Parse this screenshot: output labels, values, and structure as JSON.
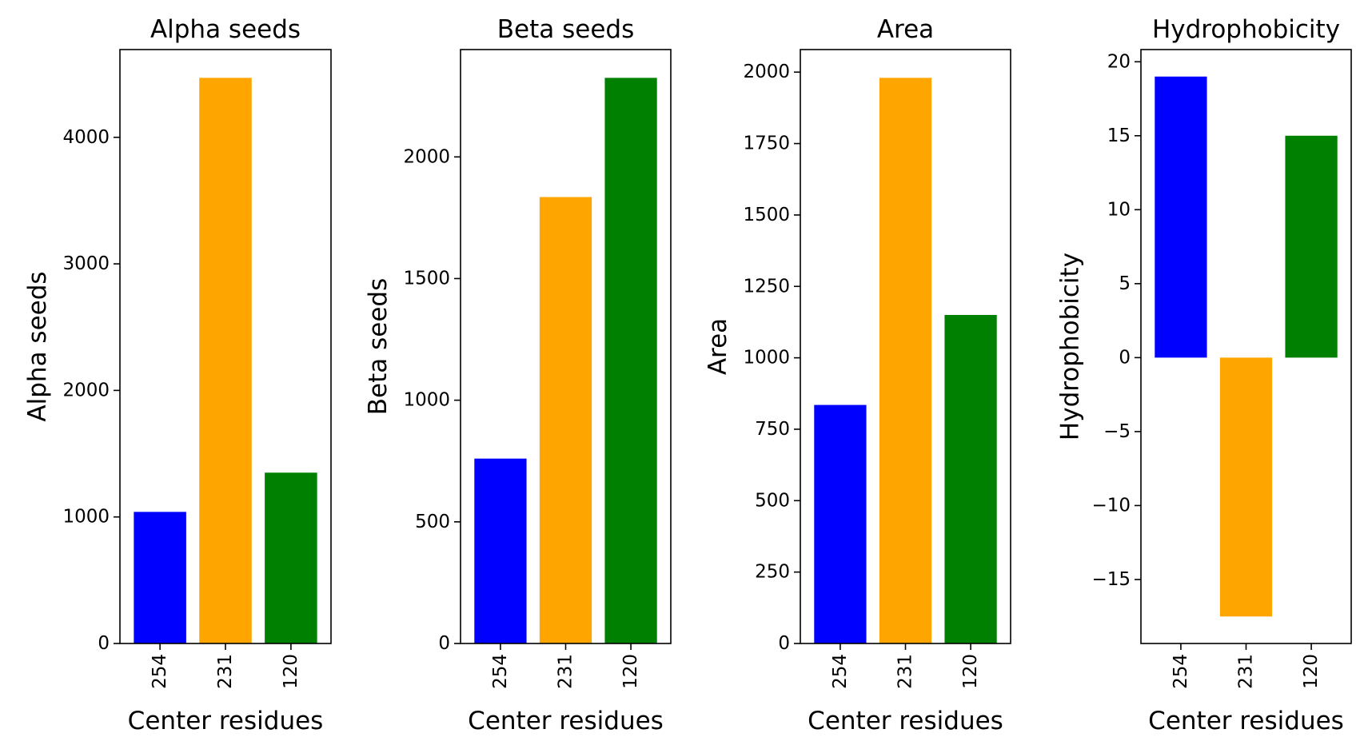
{
  "chart_data": [
    {
      "type": "bar",
      "title": "Alpha seeds",
      "xlabel": "Center residues",
      "ylabel": "Alpha seeds",
      "categories": [
        "254",
        "231",
        "120"
      ],
      "values": [
        1040,
        4470,
        1350
      ],
      "colors": [
        "#0000ff",
        "#ffa500",
        "#008000"
      ],
      "ylim": [
        0,
        4693.5
      ],
      "yticks": [
        0,
        1000,
        2000,
        3000,
        4000
      ],
      "ytick_labels": [
        "0",
        "1000",
        "2000",
        "3000",
        "4000"
      ],
      "grid": false
    },
    {
      "type": "bar",
      "title": "Beta seeds",
      "xlabel": "Center residues",
      "ylabel": "Beta seeds",
      "categories": [
        "254",
        "231",
        "120"
      ],
      "values": [
        760,
        1835,
        2325
      ],
      "colors": [
        "#0000ff",
        "#ffa500",
        "#008000"
      ],
      "ylim": [
        0,
        2441.25
      ],
      "yticks": [
        0,
        500,
        1000,
        1500,
        2000
      ],
      "ytick_labels": [
        "0",
        "500",
        "1000",
        "1500",
        "2000"
      ],
      "grid": false
    },
    {
      "type": "bar",
      "title": "Area",
      "xlabel": "Center residues",
      "ylabel": "Area",
      "categories": [
        "254",
        "231",
        "120"
      ],
      "values": [
        835,
        1980,
        1150
      ],
      "colors": [
        "#0000ff",
        "#ffa500",
        "#008000"
      ],
      "ylim": [
        0,
        2079
      ],
      "yticks": [
        0,
        250,
        500,
        750,
        1000,
        1250,
        1500,
        1750,
        2000
      ],
      "ytick_labels": [
        "0",
        "250",
        "500",
        "750",
        "1000",
        "1250",
        "1500",
        "1750",
        "2000"
      ],
      "grid": false
    },
    {
      "type": "bar",
      "title": "Hydrophobicity",
      "xlabel": "Center residues",
      "ylabel": "Hydrophobicity",
      "categories": [
        "254",
        "231",
        "120"
      ],
      "values": [
        19,
        -17.5,
        15
      ],
      "colors": [
        "#0000ff",
        "#ffa500",
        "#008000"
      ],
      "ylim": [
        -19.325,
        20.825
      ],
      "yticks": [
        -15,
        -10,
        -5,
        0,
        5,
        10,
        15,
        20
      ],
      "ytick_labels": [
        "−15",
        "−10",
        "−5",
        "0",
        "5",
        "10",
        "15",
        "20"
      ],
      "grid": false
    }
  ]
}
